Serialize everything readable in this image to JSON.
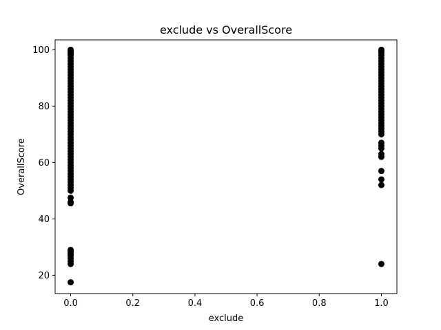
{
  "chart_data": {
    "type": "scatter",
    "title": "exclude vs OverallScore",
    "xlabel": "exclude",
    "ylabel": "OverallScore",
    "xlim": [
      -0.05,
      1.05
    ],
    "ylim": [
      13.5,
      103.5
    ],
    "xticks": [
      0.0,
      0.2,
      0.4,
      0.6,
      0.8,
      1.0
    ],
    "xtick_labels": [
      "0.0",
      "0.2",
      "0.4",
      "0.6",
      "0.8",
      "1.0"
    ],
    "yticks": [
      20,
      40,
      60,
      80,
      100
    ],
    "ytick_labels": [
      "20",
      "40",
      "60",
      "80",
      "100"
    ],
    "grid": false,
    "marker_color": "#000000",
    "series": [
      {
        "points": [
          {
            "x": 0,
            "y": 100
          },
          {
            "x": 0,
            "y": 99.5
          },
          {
            "x": 0,
            "y": 99
          },
          {
            "x": 0,
            "y": 98.5
          },
          {
            "x": 0,
            "y": 98
          },
          {
            "x": 0,
            "y": 97
          },
          {
            "x": 0,
            "y": 96
          },
          {
            "x": 0,
            "y": 95
          },
          {
            "x": 0,
            "y": 94
          },
          {
            "x": 0,
            "y": 93
          },
          {
            "x": 0,
            "y": 92
          },
          {
            "x": 0,
            "y": 91
          },
          {
            "x": 0,
            "y": 90
          },
          {
            "x": 0,
            "y": 89
          },
          {
            "x": 0,
            "y": 88
          },
          {
            "x": 0,
            "y": 87
          },
          {
            "x": 0,
            "y": 86
          },
          {
            "x": 0,
            "y": 85
          },
          {
            "x": 0,
            "y": 84
          },
          {
            "x": 0,
            "y": 83
          },
          {
            "x": 0,
            "y": 82
          },
          {
            "x": 0,
            "y": 81
          },
          {
            "x": 0,
            "y": 80
          },
          {
            "x": 0,
            "y": 79
          },
          {
            "x": 0,
            "y": 78
          },
          {
            "x": 0,
            "y": 77
          },
          {
            "x": 0,
            "y": 76
          },
          {
            "x": 0,
            "y": 75
          },
          {
            "x": 0,
            "y": 74
          },
          {
            "x": 0,
            "y": 73
          },
          {
            "x": 0,
            "y": 72
          },
          {
            "x": 0,
            "y": 71
          },
          {
            "x": 0,
            "y": 70
          },
          {
            "x": 0,
            "y": 69
          },
          {
            "x": 0,
            "y": 68
          },
          {
            "x": 0,
            "y": 67
          },
          {
            "x": 0,
            "y": 66
          },
          {
            "x": 0,
            "y": 65
          },
          {
            "x": 0,
            "y": 64
          },
          {
            "x": 0,
            "y": 63
          },
          {
            "x": 0,
            "y": 62
          },
          {
            "x": 0,
            "y": 61
          },
          {
            "x": 0,
            "y": 60
          },
          {
            "x": 0,
            "y": 59
          },
          {
            "x": 0,
            "y": 58
          },
          {
            "x": 0,
            "y": 57
          },
          {
            "x": 0,
            "y": 56
          },
          {
            "x": 0,
            "y": 55
          },
          {
            "x": 0,
            "y": 54
          },
          {
            "x": 0,
            "y": 53
          },
          {
            "x": 0,
            "y": 52
          },
          {
            "x": 0,
            "y": 51
          },
          {
            "x": 0,
            "y": 50
          },
          {
            "x": 0,
            "y": 47.5
          },
          {
            "x": 0,
            "y": 46
          },
          {
            "x": 0,
            "y": 45.5
          },
          {
            "x": 0,
            "y": 29
          },
          {
            "x": 0,
            "y": 28.5
          },
          {
            "x": 0,
            "y": 28
          },
          {
            "x": 0,
            "y": 27.5
          },
          {
            "x": 0,
            "y": 27
          },
          {
            "x": 0,
            "y": 26
          },
          {
            "x": 0,
            "y": 25
          },
          {
            "x": 0,
            "y": 24
          },
          {
            "x": 0,
            "y": 17.5
          },
          {
            "x": 1,
            "y": 100
          },
          {
            "x": 1,
            "y": 99.5
          },
          {
            "x": 1,
            "y": 99
          },
          {
            "x": 1,
            "y": 98
          },
          {
            "x": 1,
            "y": 97
          },
          {
            "x": 1,
            "y": 96
          },
          {
            "x": 1,
            "y": 95
          },
          {
            "x": 1,
            "y": 94
          },
          {
            "x": 1,
            "y": 93
          },
          {
            "x": 1,
            "y": 92
          },
          {
            "x": 1,
            "y": 91
          },
          {
            "x": 1,
            "y": 90
          },
          {
            "x": 1,
            "y": 89
          },
          {
            "x": 1,
            "y": 88
          },
          {
            "x": 1,
            "y": 87
          },
          {
            "x": 1,
            "y": 86
          },
          {
            "x": 1,
            "y": 85
          },
          {
            "x": 1,
            "y": 84
          },
          {
            "x": 1,
            "y": 83
          },
          {
            "x": 1,
            "y": 82
          },
          {
            "x": 1,
            "y": 81
          },
          {
            "x": 1,
            "y": 80
          },
          {
            "x": 1,
            "y": 79
          },
          {
            "x": 1,
            "y": 78
          },
          {
            "x": 1,
            "y": 77
          },
          {
            "x": 1,
            "y": 76
          },
          {
            "x": 1,
            "y": 75
          },
          {
            "x": 1,
            "y": 74
          },
          {
            "x": 1,
            "y": 73
          },
          {
            "x": 1,
            "y": 72
          },
          {
            "x": 1,
            "y": 71
          },
          {
            "x": 1,
            "y": 70
          },
          {
            "x": 1,
            "y": 67
          },
          {
            "x": 1,
            "y": 66
          },
          {
            "x": 1,
            "y": 65
          },
          {
            "x": 1,
            "y": 63
          },
          {
            "x": 1,
            "y": 62
          },
          {
            "x": 1,
            "y": 57
          },
          {
            "x": 1,
            "y": 54
          },
          {
            "x": 1,
            "y": 52
          },
          {
            "x": 1,
            "y": 24
          }
        ]
      }
    ]
  }
}
